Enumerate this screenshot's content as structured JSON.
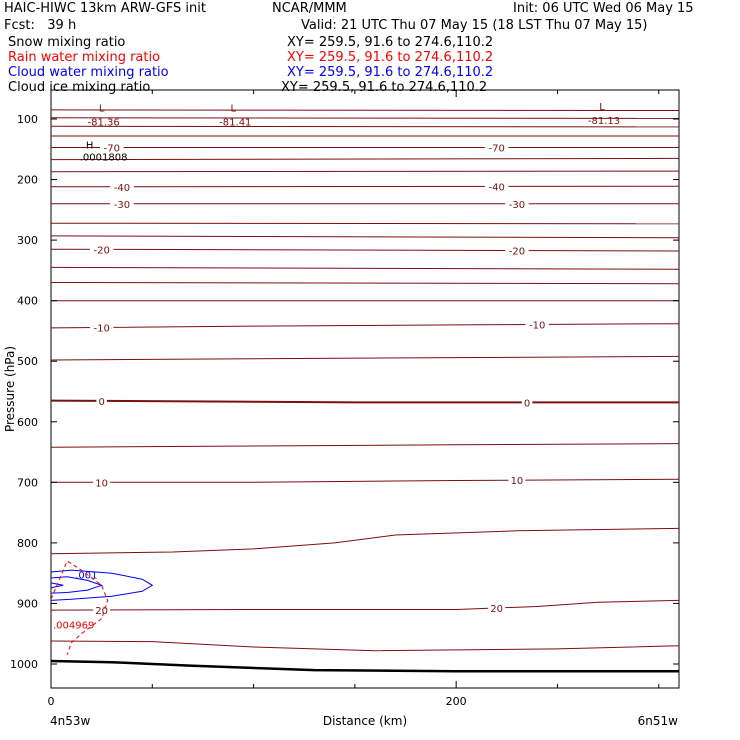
{
  "header": {
    "title_left": "HAIC-HIWC 13km ARW-GFS init",
    "title_center": "NCAR/MMM",
    "init_time": "Init: 06 UTC Wed 06 May 15",
    "forecast": "Fcst:   39 h",
    "valid_time": "Valid: 21 UTC Thu 07 May 15 (18 LST Thu 07 May 15)",
    "fields": [
      {
        "label": "Snow mixing ratio",
        "xy": "XY= 259.5, 91.6 to 274.6,110.2",
        "color": "#000000"
      },
      {
        "label": "Rain water mixing ratio",
        "xy": "XY= 259.5, 91.6 to 274.6,110.2",
        "color": "#ff0000"
      },
      {
        "label": "Cloud water mixing ratio",
        "xy": "XY= 259.5, 91.6 to 274.6,110.2",
        "color": "#0000ff"
      },
      {
        "label": "Cloud ice mixing ratio",
        "xy": "XY= 259.5, 91.6 to 274.6,110.2",
        "color": "#000000"
      }
    ]
  },
  "chart_data": {
    "type": "line",
    "xlabel": "Distance (km)",
    "ylabel": "Pressure (hPa)",
    "xlim": [
      0,
      310
    ],
    "ylim": [
      1020,
      60
    ],
    "x_ticks": [
      {
        "value": 0,
        "label": "0"
      },
      {
        "value": 200,
        "label": "200"
      }
    ],
    "x_minor_ticks": [
      50,
      100,
      150,
      250,
      300
    ],
    "y_ticks": [
      100,
      200,
      300,
      400,
      500,
      600,
      700,
      800,
      900,
      1000
    ],
    "x_end_labels": {
      "left": "4n53w",
      "right": "6n51w"
    },
    "temperature_color": "#7a1010",
    "isotherms": [
      {
        "x": [
          0,
          310
        ],
        "y": [
          85,
          86
        ],
        "label": "",
        "bold": false
      },
      {
        "x": [
          0,
          310
        ],
        "y": [
          98,
          99
        ],
        "label": "",
        "bold": false
      },
      {
        "x": [
          0,
          310
        ],
        "y": [
          112,
          113
        ],
        "label": "",
        "bold": false
      },
      {
        "x": [
          0,
          310
        ],
        "y": [
          128,
          128
        ],
        "label": "",
        "bold": false
      },
      {
        "x": [
          0,
          310
        ],
        "y": [
          147,
          147
        ],
        "label": "-70",
        "label_x": [
          30,
          220
        ],
        "bold": false
      },
      {
        "x": [
          0,
          310
        ],
        "y": [
          167,
          165
        ],
        "label": "",
        "bold": false
      },
      {
        "x": [
          0,
          310
        ],
        "y": [
          187,
          186
        ],
        "label": "",
        "bold": false
      },
      {
        "x": [
          0,
          310
        ],
        "y": [
          212,
          211
        ],
        "label": "-40",
        "label_x": [
          35,
          220
        ],
        "bold": false
      },
      {
        "x": [
          0,
          310
        ],
        "y": [
          240,
          240
        ],
        "label": "-30",
        "label_x": [
          35,
          230
        ],
        "bold": false
      },
      {
        "x": [
          0,
          310
        ],
        "y": [
          272,
          273
        ],
        "label": "",
        "bold": false
      },
      {
        "x": [
          0,
          310
        ],
        "y": [
          293,
          296
        ],
        "label": "",
        "bold": false
      },
      {
        "x": [
          0,
          310
        ],
        "y": [
          315,
          318
        ],
        "label": "-20",
        "label_x": [
          25,
          230
        ],
        "bold": false
      },
      {
        "x": [
          0,
          310
        ],
        "y": [
          345,
          348
        ],
        "label": "",
        "bold": false
      },
      {
        "x": [
          0,
          310
        ],
        "y": [
          370,
          372
        ],
        "label": "",
        "bold": false
      },
      {
        "x": [
          0,
          310
        ],
        "y": [
          400,
          400
        ],
        "label": "",
        "bold": false
      },
      {
        "x": [
          0,
          100,
          200,
          310
        ],
        "y": [
          445,
          442,
          440,
          438
        ],
        "label": "-10",
        "label_x": [
          25,
          240
        ],
        "bold": false
      },
      {
        "x": [
          0,
          100,
          200,
          310
        ],
        "y": [
          498,
          496,
          494,
          492
        ],
        "label": "",
        "bold": false
      },
      {
        "x": [
          0,
          150,
          310
        ],
        "y": [
          565,
          568,
          568
        ],
        "label": "0",
        "label_x": [
          25,
          235
        ],
        "bold": true
      },
      {
        "x": [
          0,
          100,
          200,
          310
        ],
        "y": [
          642,
          640,
          638,
          636
        ],
        "label": "",
        "bold": false
      },
      {
        "x": [
          0,
          100,
          200,
          310
        ],
        "y": [
          700,
          700,
          697,
          695
        ],
        "label": "10",
        "label_x": [
          25,
          230
        ],
        "bold": false
      },
      {
        "x": [
          0,
          60,
          100,
          140,
          170,
          230,
          310
        ],
        "y": [
          818,
          815,
          810,
          800,
          787,
          780,
          776
        ],
        "label": "",
        "bold": false
      },
      {
        "x": [
          0,
          100,
          200,
          240,
          270,
          310
        ],
        "y": [
          911,
          910,
          910,
          905,
          898,
          895
        ],
        "label": "20",
        "label_x": [
          25,
          220
        ],
        "bold": false
      },
      {
        "x": [
          0,
          50,
          100,
          130,
          160,
          250,
          310
        ],
        "y": [
          962,
          963,
          972,
          975,
          978,
          975,
          970
        ],
        "label": "",
        "bold": false
      }
    ],
    "terrain": {
      "x": [
        0,
        30,
        70,
        130,
        200,
        310
      ],
      "y": [
        995,
        997,
        1003,
        1010,
        1012,
        1012
      ],
      "color": "#000000"
    },
    "lows": [
      {
        "x": 25,
        "p": 88,
        "marker": "L",
        "value": "-81.36"
      },
      {
        "x": 90,
        "p": 88,
        "marker": "L",
        "value": "-81.41"
      },
      {
        "x": 272,
        "p": 85,
        "marker": "L",
        "value": "-81.13"
      }
    ],
    "highs": [
      {
        "x": 23,
        "p": 145,
        "marker": "H",
        "value": ".0001808"
      }
    ],
    "cloud_water": {
      "color": "#0000ff",
      "label": ".001",
      "label_x": 10,
      "label_p": 852,
      "contours": [
        {
          "x": [
            0,
            10,
            30,
            45,
            50,
            45,
            30,
            10,
            0
          ],
          "y": [
            848,
            845,
            850,
            860,
            870,
            880,
            888,
            893,
            895
          ]
        },
        {
          "x": [
            0,
            8,
            18,
            25,
            18,
            8,
            0
          ],
          "y": [
            858,
            856,
            862,
            870,
            878,
            882,
            883
          ]
        },
        {
          "x": [
            0,
            6,
            0
          ],
          "y": [
            866,
            870,
            874
          ]
        }
      ]
    },
    "rain_water": {
      "color": "#ff0000",
      "label": ".004969",
      "label_x": 0,
      "label_p": 935,
      "contours": [
        {
          "x": [
            0,
            8,
            15,
            25,
            28,
            25,
            15,
            10,
            8
          ],
          "y": [
            893,
            830,
            845,
            870,
            895,
            925,
            950,
            965,
            985
          ]
        }
      ]
    }
  }
}
